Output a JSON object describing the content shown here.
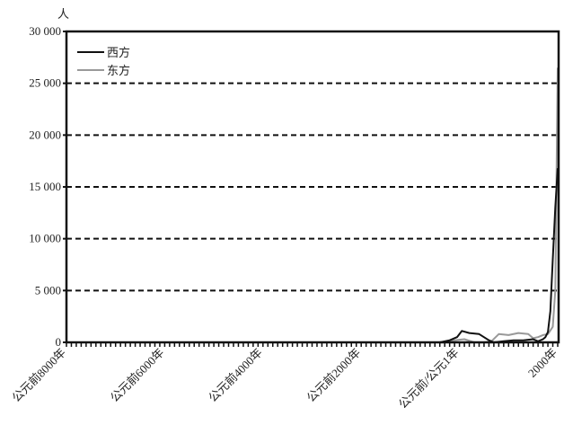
{
  "chart_data": {
    "type": "line",
    "ylabel": "人",
    "xlim": [
      -8000,
      2000
    ],
    "ylim": [
      0,
      30000
    ],
    "yticks": [
      0,
      5000,
      10000,
      15000,
      20000,
      25000,
      30000
    ],
    "ytick_labels": [
      "0",
      "5 000",
      "10 000",
      "15 000",
      "20 000",
      "25 000",
      "30 000"
    ],
    "xticks": [
      -8000,
      -6000,
      -4000,
      -2000,
      0,
      2000
    ],
    "xtick_labels": [
      "公元前8000年",
      "公元前6000年",
      "公元前4000年",
      "公元前2000年",
      "公元前/公元1年",
      "2000年"
    ],
    "grid": "horizontal dashed",
    "legend_position": "top-left",
    "series": [
      {
        "name": "西方",
        "color": "#111111",
        "x": [
          -8000,
          -400,
          -200,
          -50,
          50,
          200,
          400,
          600,
          700,
          900,
          1100,
          1300,
          1500,
          1600,
          1700,
          1750,
          1800,
          1850,
          1900,
          1950,
          2000
        ],
        "y": [
          0,
          0,
          200,
          500,
          1100,
          900,
          800,
          200,
          0,
          100,
          200,
          200,
          300,
          100,
          300,
          500,
          1000,
          3000,
          8000,
          13000,
          16800
        ]
      },
      {
        "name": "东方",
        "color": "#999999",
        "x": [
          -8000,
          -300,
          -100,
          100,
          300,
          500,
          650,
          800,
          1000,
          1200,
          1400,
          1500,
          1600,
          1700,
          1800,
          1900,
          1950,
          2000
        ],
        "y": [
          0,
          0,
          200,
          300,
          0,
          0,
          100,
          800,
          700,
          900,
          800,
          400,
          500,
          700,
          800,
          1500,
          5000,
          26500
        ]
      }
    ]
  }
}
